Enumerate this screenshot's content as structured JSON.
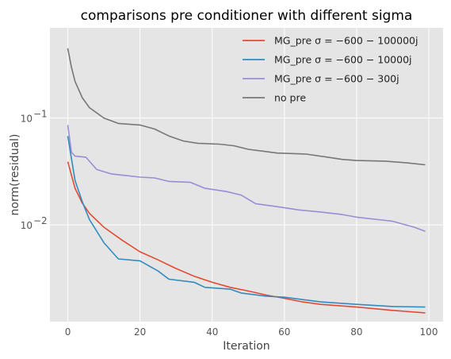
{
  "chart_data": {
    "type": "line",
    "title": "comparisons pre conditioner with different sigma",
    "xlabel": "Iteration",
    "ylabel": "norm(residual)",
    "yscale": "log",
    "xlim": [
      -4.95,
      103.95
    ],
    "ylim": [
      0.00124,
      0.7
    ],
    "x_ticks": [
      0,
      20,
      40,
      60,
      80,
      100
    ],
    "y_ticks": [
      0.01,
      0.1
    ],
    "y_tick_labels": [
      {
        "base": "10",
        "exp": "−2",
        "value": 0.01
      },
      {
        "base": "10",
        "exp": "−1",
        "value": 0.1
      }
    ],
    "grid": true,
    "legend_position": "top-right",
    "series": [
      {
        "name": "MG_pre σ = −600 − 100000j",
        "color": "#E24A33",
        "points": [
          [
            0,
            0.039
          ],
          [
            2,
            0.022
          ],
          [
            4,
            0.016
          ],
          [
            6,
            0.0128
          ],
          [
            10,
            0.0095
          ],
          [
            15,
            0.0072
          ],
          [
            20,
            0.0056
          ],
          [
            25,
            0.0047
          ],
          [
            30,
            0.0039
          ],
          [
            35,
            0.0033
          ],
          [
            40,
            0.0029
          ],
          [
            45,
            0.0026
          ],
          [
            50,
            0.0024
          ],
          [
            55,
            0.0022
          ],
          [
            60,
            0.00205
          ],
          [
            65,
            0.0019
          ],
          [
            70,
            0.0018
          ],
          [
            80,
            0.0017
          ],
          [
            90,
            0.00158
          ],
          [
            99,
            0.0015
          ]
        ]
      },
      {
        "name": "MG_pre σ = −600 − 10000j",
        "color": "#348ABD",
        "points": [
          [
            0,
            0.068
          ],
          [
            2,
            0.026
          ],
          [
            4,
            0.0165
          ],
          [
            6,
            0.0112
          ],
          [
            10,
            0.0068
          ],
          [
            14,
            0.0048
          ],
          [
            20,
            0.0046
          ],
          [
            25,
            0.0037
          ],
          [
            28,
            0.0031
          ],
          [
            35,
            0.0029
          ],
          [
            38,
            0.0026
          ],
          [
            45,
            0.0025
          ],
          [
            48,
            0.0023
          ],
          [
            55,
            0.00215
          ],
          [
            60,
            0.0021
          ],
          [
            70,
            0.0019
          ],
          [
            80,
            0.0018
          ],
          [
            90,
            0.00172
          ],
          [
            99,
            0.0017
          ]
        ]
      },
      {
        "name": "MG_pre σ = −600 − 300j",
        "color": "#988ED5",
        "points": [
          [
            0,
            0.086
          ],
          [
            1,
            0.048
          ],
          [
            2,
            0.044
          ],
          [
            5,
            0.043
          ],
          [
            8,
            0.033
          ],
          [
            12,
            0.03
          ],
          [
            16,
            0.029
          ],
          [
            20,
            0.028
          ],
          [
            24,
            0.0275
          ],
          [
            28,
            0.0255
          ],
          [
            34,
            0.025
          ],
          [
            38,
            0.022
          ],
          [
            44,
            0.0205
          ],
          [
            48,
            0.019
          ],
          [
            52,
            0.0158
          ],
          [
            58,
            0.0148
          ],
          [
            64,
            0.0138
          ],
          [
            70,
            0.0132
          ],
          [
            76,
            0.0125
          ],
          [
            80,
            0.0118
          ],
          [
            86,
            0.0112
          ],
          [
            90,
            0.0108
          ],
          [
            96,
            0.0095
          ],
          [
            99,
            0.0087
          ]
        ]
      },
      {
        "name": "no pre",
        "color": "#777777",
        "points": [
          [
            0,
            0.45
          ],
          [
            1,
            0.3
          ],
          [
            2,
            0.22
          ],
          [
            4,
            0.155
          ],
          [
            6,
            0.125
          ],
          [
            10,
            0.1
          ],
          [
            14,
            0.089
          ],
          [
            20,
            0.086
          ],
          [
            24,
            0.079
          ],
          [
            28,
            0.068
          ],
          [
            32,
            0.061
          ],
          [
            36,
            0.058
          ],
          [
            42,
            0.057
          ],
          [
            46,
            0.055
          ],
          [
            50,
            0.051
          ],
          [
            54,
            0.049
          ],
          [
            58,
            0.047
          ],
          [
            66,
            0.046
          ],
          [
            72,
            0.043
          ],
          [
            76,
            0.041
          ],
          [
            80,
            0.04
          ],
          [
            88,
            0.0395
          ],
          [
            94,
            0.038
          ],
          [
            99,
            0.0365
          ]
        ]
      }
    ]
  }
}
